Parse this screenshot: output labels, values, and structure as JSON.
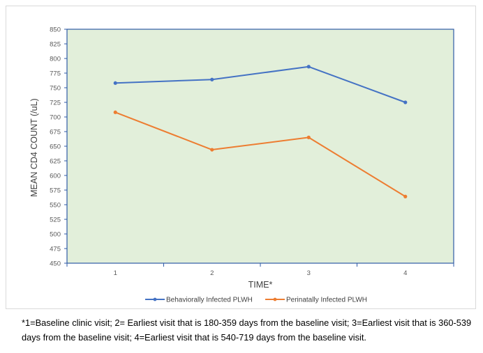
{
  "chart_data": {
    "type": "line",
    "xlabel": "TIME*",
    "ylabel": "MEAN CD4  COUNT (/uL)",
    "categories": [
      "1",
      "2",
      "3",
      "4"
    ],
    "ylim": [
      450,
      850
    ],
    "yticks": [
      450,
      475,
      500,
      525,
      550,
      575,
      600,
      625,
      650,
      675,
      700,
      725,
      750,
      775,
      800,
      825,
      850
    ],
    "plot_background": "#e2efda",
    "grid": false,
    "legend_position": "bottom",
    "series": [
      {
        "name": "Behaviorally Infected PLWH",
        "color": "#4472c4",
        "values": [
          758,
          764,
          786,
          725
        ]
      },
      {
        "name": "Perinatally Infected PLWH",
        "color": "#ed7d31",
        "values": [
          708,
          644,
          665,
          564
        ]
      }
    ]
  },
  "footnote": "*1=Baseline clinic visit; 2= Earliest visit that is 180-359 days from the baseline visit; 3=Earliest visit that is 360-539 days from the baseline visit; 4=Earliest visit that is 540-719 days from the baseline visit."
}
